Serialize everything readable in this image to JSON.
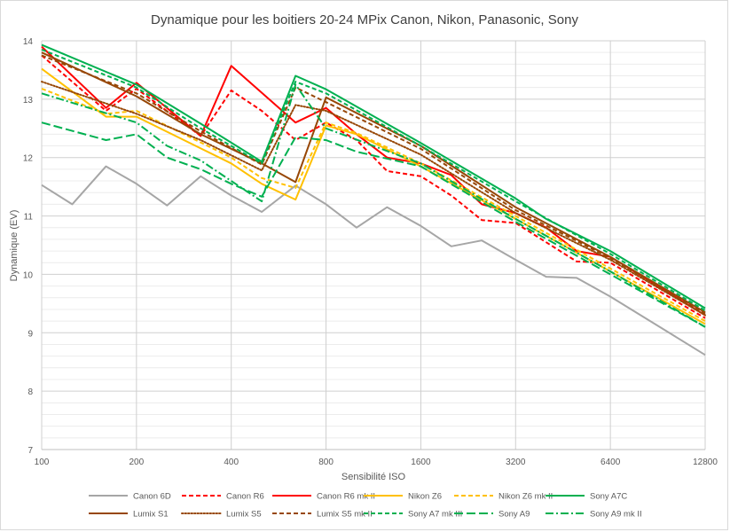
{
  "chart_data": {
    "type": "line",
    "title": "Dynamique pour les boitiers 20-24 MPix Canon, Nikon, Panasonic, Sony",
    "xlabel": "Sensibilité ISO",
    "ylabel": "Dynamique (EV)",
    "x_scale": "log2",
    "xlim": [
      100,
      12800
    ],
    "ylim": [
      7,
      14
    ],
    "x_ticks": [
      100,
      200,
      400,
      800,
      1600,
      3200,
      6400,
      12800
    ],
    "x_tick_labels": [
      "100",
      "200",
      "400",
      "800",
      "1600",
      "3200",
      "6400",
      "12800"
    ],
    "y_ticks": [
      7,
      8,
      9,
      10,
      11,
      12,
      13,
      14
    ],
    "y_tick_labels": [
      "7",
      "8",
      "9",
      "10",
      "11",
      "12",
      "13",
      "14"
    ],
    "grid": true,
    "legend_position": "bottom",
    "series": [
      {
        "name": "Canon 6D",
        "color": "#a6a6a6",
        "dash": "solid",
        "points": [
          [
            100,
            11.53
          ],
          [
            125,
            11.2
          ],
          [
            160,
            11.85
          ],
          [
            200,
            11.55
          ],
          [
            250,
            11.18
          ],
          [
            320,
            11.68
          ],
          [
            400,
            11.35
          ],
          [
            500,
            11.07
          ],
          [
            640,
            11.52
          ],
          [
            800,
            11.2
          ],
          [
            1000,
            10.8
          ],
          [
            1250,
            11.15
          ],
          [
            1600,
            10.83
          ],
          [
            2000,
            10.48
          ],
          [
            2500,
            10.58
          ],
          [
            3200,
            10.25
          ],
          [
            4000,
            9.96
          ],
          [
            5000,
            9.94
          ],
          [
            6400,
            9.62
          ],
          [
            12800,
            8.62
          ]
        ]
      },
      {
        "name": "Canon R6",
        "color": "#ff0000",
        "dash": "dashed",
        "points": [
          [
            100,
            13.75
          ],
          [
            160,
            12.8
          ],
          [
            200,
            13.18
          ],
          [
            320,
            12.37
          ],
          [
            400,
            13.15
          ],
          [
            500,
            12.8
          ],
          [
            640,
            12.3
          ],
          [
            800,
            12.6
          ],
          [
            1000,
            12.3
          ],
          [
            1250,
            11.77
          ],
          [
            1600,
            11.68
          ],
          [
            2000,
            11.35
          ],
          [
            2500,
            10.93
          ],
          [
            3200,
            10.88
          ],
          [
            4000,
            10.55
          ],
          [
            5000,
            10.22
          ],
          [
            6400,
            10.2
          ],
          [
            12800,
            9.25
          ]
        ]
      },
      {
        "name": "Canon R6 mk II",
        "color": "#ff0000",
        "dash": "solid",
        "points": [
          [
            100,
            13.9
          ],
          [
            160,
            12.85
          ],
          [
            200,
            13.28
          ],
          [
            320,
            12.37
          ],
          [
            400,
            13.57
          ],
          [
            640,
            12.6
          ],
          [
            800,
            12.85
          ],
          [
            1000,
            12.4
          ],
          [
            1250,
            12.0
          ],
          [
            1600,
            11.9
          ],
          [
            2000,
            11.7
          ],
          [
            2500,
            11.2
          ],
          [
            3200,
            11.05
          ],
          [
            4000,
            10.8
          ],
          [
            5000,
            10.4
          ],
          [
            6400,
            10.3
          ],
          [
            12800,
            9.3
          ]
        ]
      },
      {
        "name": "Nikon Z6",
        "color": "#ffc000",
        "dash": "solid",
        "points": [
          [
            100,
            13.52
          ],
          [
            160,
            12.7
          ],
          [
            200,
            12.7
          ],
          [
            400,
            11.9
          ],
          [
            500,
            11.55
          ],
          [
            640,
            11.28
          ],
          [
            800,
            12.55
          ],
          [
            1000,
            12.4
          ],
          [
            1600,
            11.85
          ],
          [
            3200,
            10.95
          ],
          [
            6400,
            10.05
          ],
          [
            12800,
            9.15
          ]
        ]
      },
      {
        "name": "Nikon Z6 mk II",
        "color": "#ffc000",
        "dash": "dashed",
        "points": [
          [
            100,
            13.18
          ],
          [
            160,
            12.75
          ],
          [
            200,
            12.8
          ],
          [
            400,
            12.0
          ],
          [
            500,
            11.65
          ],
          [
            640,
            11.48
          ],
          [
            800,
            12.6
          ],
          [
            1000,
            12.42
          ],
          [
            1600,
            11.9
          ],
          [
            3200,
            11.0
          ],
          [
            6400,
            10.1
          ],
          [
            12800,
            9.2
          ]
        ]
      },
      {
        "name": "Sony A7C",
        "color": "#00b050",
        "dash": "solid",
        "points": [
          [
            100,
            13.93
          ],
          [
            200,
            13.25
          ],
          [
            320,
            12.58
          ],
          [
            500,
            11.93
          ],
          [
            640,
            13.4
          ],
          [
            800,
            13.17
          ],
          [
            1600,
            12.25
          ],
          [
            3200,
            11.3
          ],
          [
            4000,
            10.95
          ],
          [
            6400,
            10.4
          ],
          [
            12800,
            9.42
          ]
        ]
      },
      {
        "name": "Lumix S1",
        "color": "#974706",
        "dash": "solid",
        "points": [
          [
            100,
            13.8
          ],
          [
            200,
            13.05
          ],
          [
            320,
            12.4
          ],
          [
            500,
            11.9
          ],
          [
            640,
            11.58
          ],
          [
            800,
            13.03
          ],
          [
            1600,
            12.2
          ],
          [
            3200,
            11.15
          ],
          [
            6400,
            10.3
          ],
          [
            12800,
            9.35
          ]
        ]
      },
      {
        "name": "Lumix S5",
        "color": "#974706",
        "dash": "dotted",
        "points": [
          [
            100,
            13.3
          ],
          [
            200,
            12.75
          ],
          [
            320,
            12.3
          ],
          [
            500,
            11.78
          ],
          [
            640,
            12.9
          ],
          [
            800,
            12.8
          ],
          [
            1600,
            12.05
          ],
          [
            3200,
            11.05
          ],
          [
            6400,
            10.25
          ],
          [
            12800,
            9.3
          ]
        ]
      },
      {
        "name": "Lumix S5 mk II",
        "color": "#974706",
        "dash": "dashed",
        "points": [
          [
            100,
            13.75
          ],
          [
            200,
            13.1
          ],
          [
            320,
            12.45
          ],
          [
            500,
            11.88
          ],
          [
            640,
            13.2
          ],
          [
            800,
            12.95
          ],
          [
            1600,
            12.15
          ],
          [
            3200,
            11.1
          ],
          [
            6400,
            10.28
          ],
          [
            12800,
            9.33
          ]
        ]
      },
      {
        "name": "Sony A7 mk III",
        "color": "#00b050",
        "dash": "dashed",
        "points": [
          [
            100,
            13.85
          ],
          [
            200,
            13.2
          ],
          [
            320,
            12.5
          ],
          [
            500,
            11.9
          ],
          [
            640,
            13.3
          ],
          [
            800,
            13.1
          ],
          [
            1600,
            12.2
          ],
          [
            3200,
            11.25
          ],
          [
            6400,
            10.35
          ],
          [
            12800,
            9.38
          ]
        ]
      },
      {
        "name": "Sony A9",
        "color": "#00b050",
        "dash": "longdash",
        "points": [
          [
            100,
            12.6
          ],
          [
            160,
            12.3
          ],
          [
            200,
            12.4
          ],
          [
            250,
            12.0
          ],
          [
            320,
            11.8
          ],
          [
            400,
            11.55
          ],
          [
            500,
            11.33
          ],
          [
            640,
            12.35
          ],
          [
            800,
            12.3
          ],
          [
            1000,
            12.1
          ],
          [
            1600,
            11.85
          ],
          [
            3200,
            10.9
          ],
          [
            6400,
            10.0
          ],
          [
            12800,
            9.1
          ]
        ]
      },
      {
        "name": "Sony A9 mk II",
        "color": "#00b050",
        "dash": "dashdot",
        "points": [
          [
            100,
            13.1
          ],
          [
            200,
            12.6
          ],
          [
            250,
            12.2
          ],
          [
            320,
            11.95
          ],
          [
            400,
            11.6
          ],
          [
            500,
            11.25
          ],
          [
            640,
            13.25
          ],
          [
            800,
            12.5
          ],
          [
            1600,
            11.9
          ],
          [
            3200,
            10.95
          ],
          [
            6400,
            10.05
          ],
          [
            12800,
            9.1
          ]
        ]
      }
    ]
  }
}
